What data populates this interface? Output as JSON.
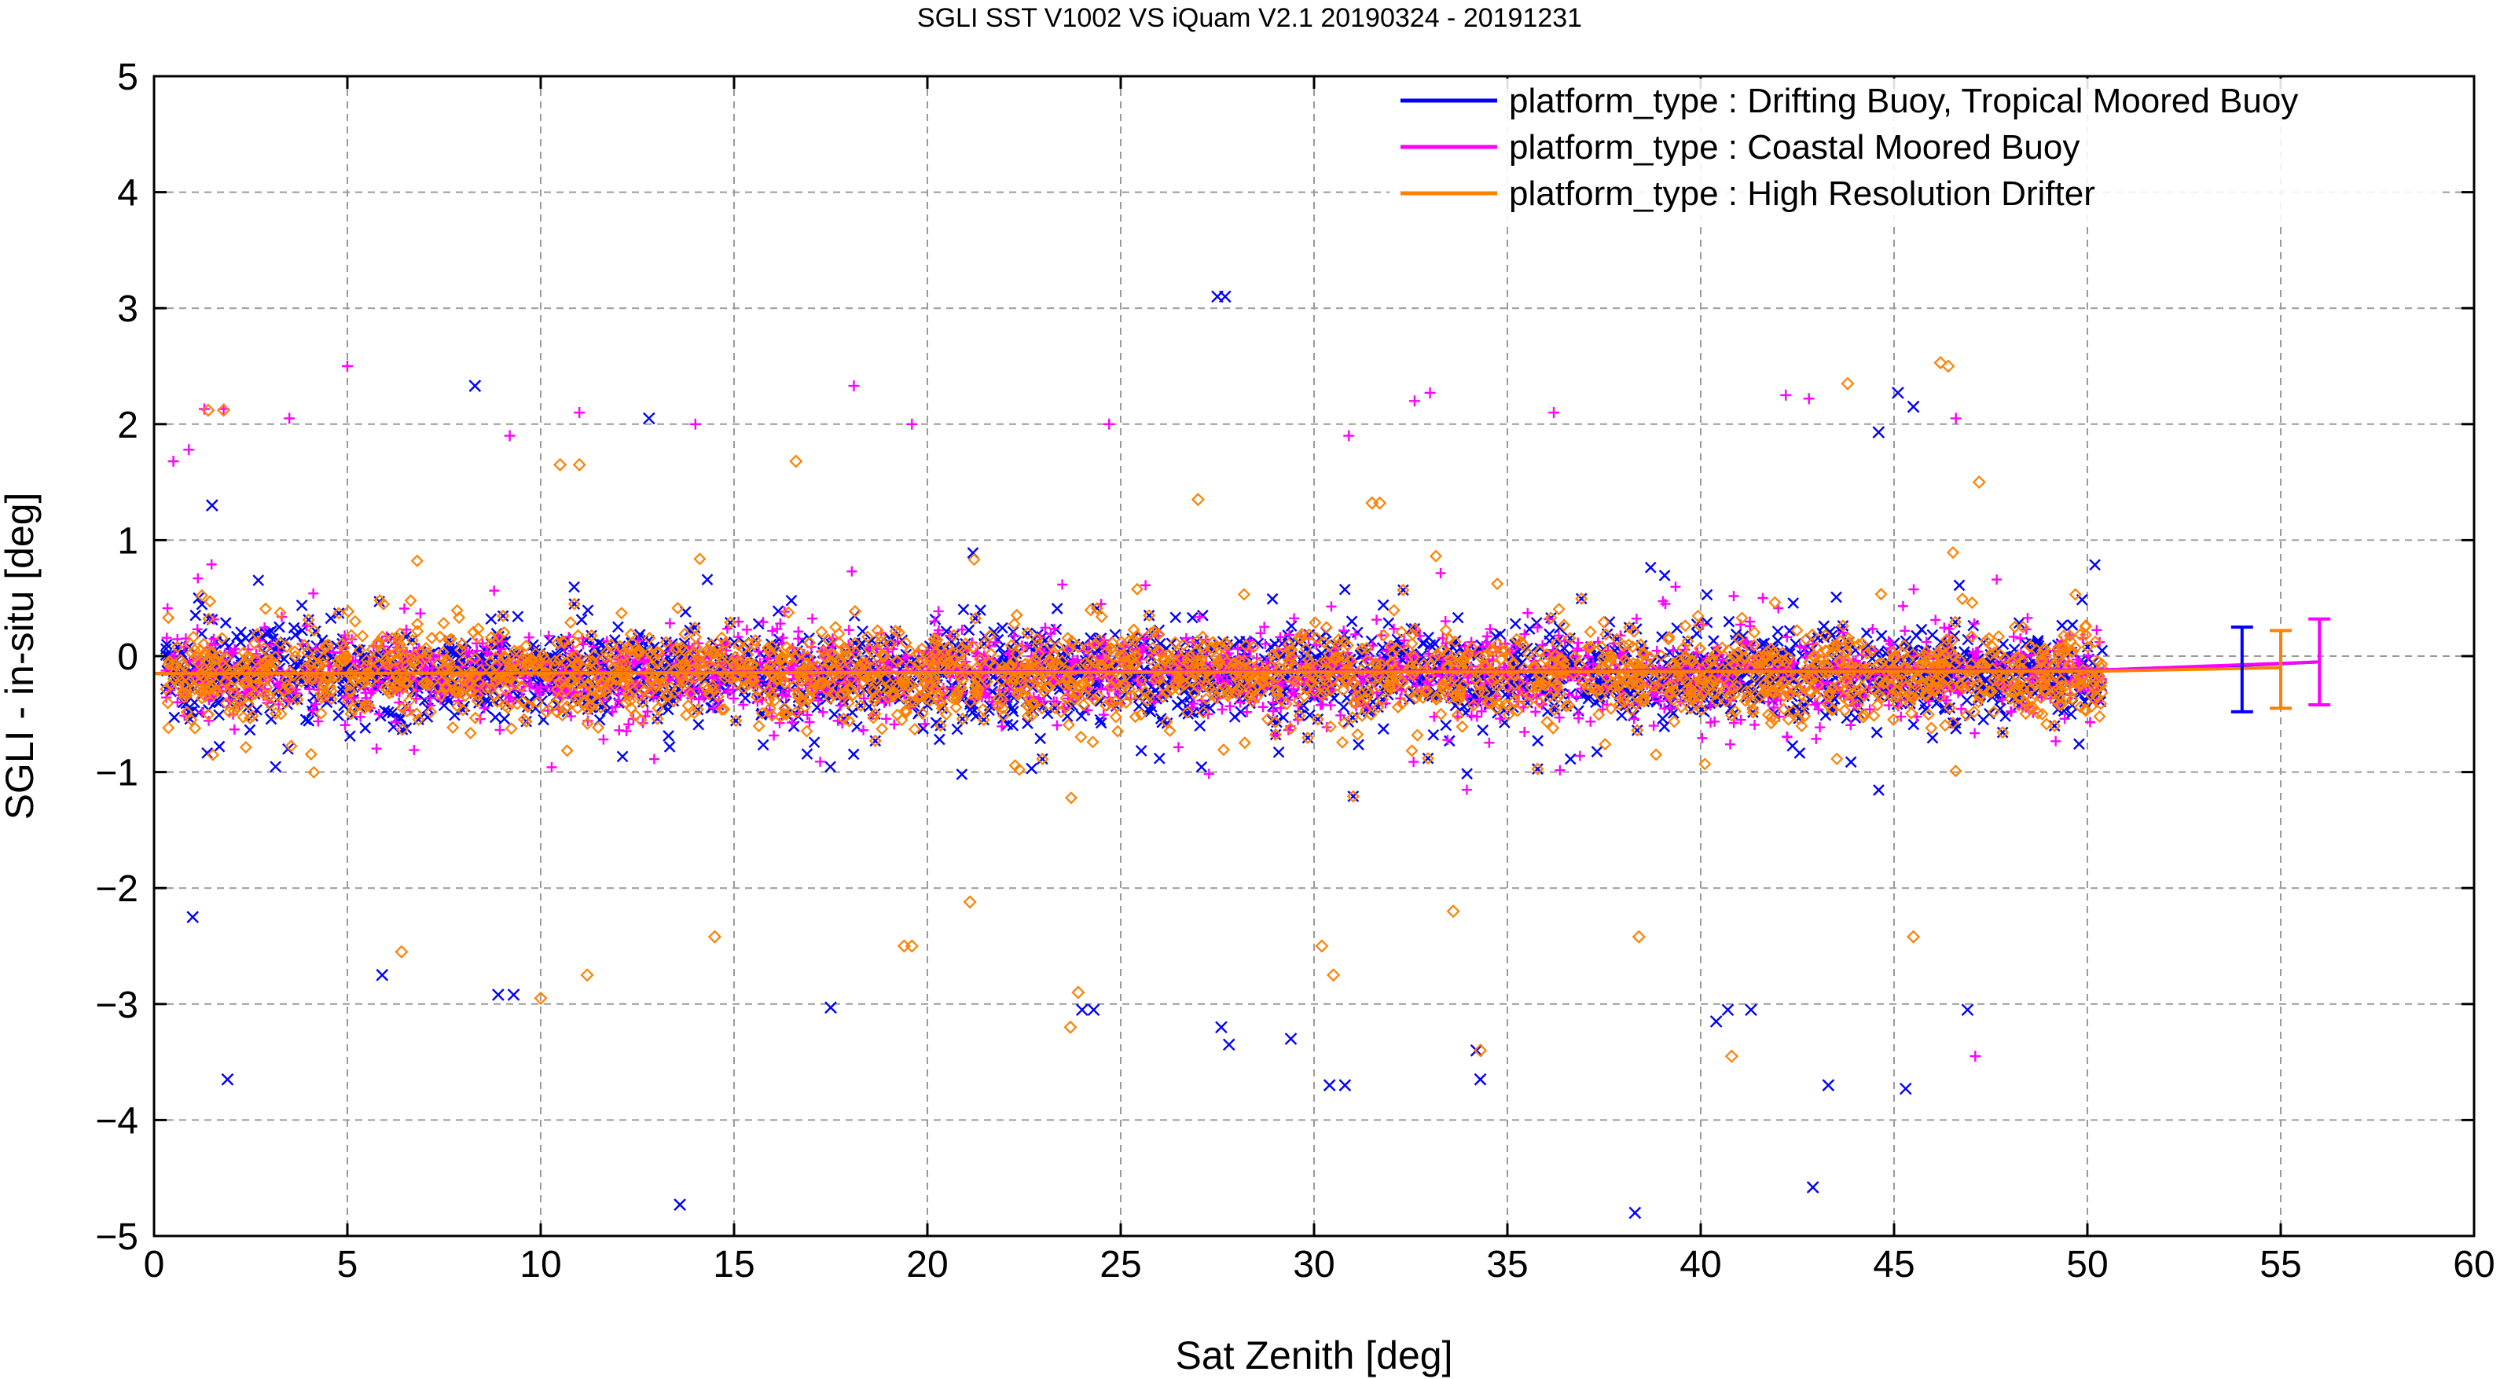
{
  "chart_data": {
    "type": "scatter",
    "title": "SGLI SST V1002 VS iQuam V2.1 20190324 - 20191231",
    "xlabel": "Sat Zenith [deg]",
    "ylabel": "SGLI - in-situ [deg]",
    "xlim": [
      0,
      60
    ],
    "ylim": [
      -5,
      5
    ],
    "x_ticks": [
      0,
      5,
      10,
      15,
      20,
      25,
      30,
      35,
      40,
      45,
      50,
      55,
      60
    ],
    "y_ticks": [
      -5,
      -4,
      -3,
      -2,
      -1,
      0,
      1,
      2,
      3,
      4,
      5
    ],
    "x_tick_labels": [
      "0",
      "5",
      "10",
      "15",
      "20",
      "25",
      "30",
      "35",
      "40",
      "45",
      "50",
      "55",
      "60"
    ],
    "y_tick_labels": [
      "−5",
      "−4",
      "−3",
      "−2",
      "−1",
      "0",
      "1",
      "2",
      "3",
      "4",
      "5"
    ],
    "grid": true,
    "legend_position": "top-right",
    "series": [
      {
        "name": "platform_type : Drifting Buoy, Tropical Moored Buoy",
        "color": "#0000ff",
        "marker": "x",
        "mean_line": {
          "x": [
            0,
            50.3,
            54,
            56
          ],
          "y": [
            -0.15,
            -0.12,
            -0.08,
            -0.05
          ]
        },
        "summary_errorbar": {
          "x": 54,
          "mean": -0.12,
          "low": -0.48,
          "high": 0.25
        },
        "outliers": [
          {
            "x": 27.5,
            "y": 3.1
          },
          {
            "x": 27.7,
            "y": 3.1
          },
          {
            "x": 8.3,
            "y": 2.33
          },
          {
            "x": 12.8,
            "y": 2.05
          },
          {
            "x": 44.6,
            "y": 1.93
          },
          {
            "x": 45.5,
            "y": 2.15
          },
          {
            "x": 45.1,
            "y": 2.27
          },
          {
            "x": 1.5,
            "y": 1.3
          },
          {
            "x": 1.9,
            "y": -3.65
          },
          {
            "x": 13.6,
            "y": -4.73
          },
          {
            "x": 30.4,
            "y": -3.7
          },
          {
            "x": 30.8,
            "y": -3.7
          },
          {
            "x": 34.2,
            "y": -3.4
          },
          {
            "x": 34.3,
            "y": -3.65
          },
          {
            "x": 38.3,
            "y": -4.8
          },
          {
            "x": 42.9,
            "y": -4.58
          },
          {
            "x": 43.3,
            "y": -3.7
          },
          {
            "x": 45.3,
            "y": -3.73
          },
          {
            "x": 27.6,
            "y": -3.2
          },
          {
            "x": 27.8,
            "y": -3.35
          },
          {
            "x": 24.0,
            "y": -3.05
          },
          {
            "x": 24.3,
            "y": -3.05
          },
          {
            "x": 17.5,
            "y": -3.03
          },
          {
            "x": 29.4,
            "y": -3.3
          },
          {
            "x": 40.7,
            "y": -3.05
          },
          {
            "x": 41.3,
            "y": -3.05
          },
          {
            "x": 40.4,
            "y": -3.15
          },
          {
            "x": 46.9,
            "y": -3.05
          },
          {
            "x": 8.9,
            "y": -2.92
          },
          {
            "x": 5.9,
            "y": -2.75
          },
          {
            "x": 9.3,
            "y": -2.92
          },
          {
            "x": 1.0,
            "y": -2.25
          }
        ]
      },
      {
        "name": "platform_type : Coastal Moored Buoy",
        "color": "#ff00ff",
        "marker": "+",
        "mean_line": {
          "x": [
            0,
            50.3,
            56
          ],
          "y": [
            -0.15,
            -0.12,
            -0.05
          ]
        },
        "summary_errorbar": {
          "x": 56,
          "mean": -0.05,
          "low": -0.42,
          "high": 0.32
        },
        "outliers": [
          {
            "x": 5.0,
            "y": 2.5
          },
          {
            "x": 18.1,
            "y": 2.33
          },
          {
            "x": 33.0,
            "y": 2.27
          },
          {
            "x": 32.6,
            "y": 2.2
          },
          {
            "x": 42.2,
            "y": 2.25
          },
          {
            "x": 42.8,
            "y": 2.22
          },
          {
            "x": 46.6,
            "y": 2.05
          },
          {
            "x": 0.5,
            "y": 1.68
          },
          {
            "x": 0.9,
            "y": 1.78
          },
          {
            "x": 11.0,
            "y": 2.1
          },
          {
            "x": 14.0,
            "y": 2.0
          },
          {
            "x": 19.6,
            "y": 2.0
          },
          {
            "x": 24.7,
            "y": 2.0
          },
          {
            "x": 36.2,
            "y": 2.1
          },
          {
            "x": 47.1,
            "y": -3.45
          },
          {
            "x": 1.3,
            "y": 2.13
          },
          {
            "x": 1.8,
            "y": 2.13
          },
          {
            "x": 3.5,
            "y": 2.05
          },
          {
            "x": 9.2,
            "y": 1.9
          },
          {
            "x": 30.9,
            "y": 1.9
          }
        ]
      },
      {
        "name": "platform_type : High Resolution Drifter",
        "color": "#ff8000",
        "marker": "diamond",
        "mean_line": {
          "x": [
            0,
            50.3,
            55
          ],
          "y": [
            -0.15,
            -0.13,
            -0.1
          ]
        },
        "summary_errorbar": {
          "x": 55,
          "mean": -0.1,
          "low": -0.45,
          "high": 0.22
        },
        "outliers": [
          {
            "x": 43.8,
            "y": 2.35
          },
          {
            "x": 46.2,
            "y": 2.53
          },
          {
            "x": 46.4,
            "y": 2.5
          },
          {
            "x": 1.4,
            "y": 2.12
          },
          {
            "x": 1.8,
            "y": 2.12
          },
          {
            "x": 10.5,
            "y": 1.65
          },
          {
            "x": 11.0,
            "y": 1.65
          },
          {
            "x": 16.6,
            "y": 1.68
          },
          {
            "x": 31.5,
            "y": 1.32
          },
          {
            "x": 31.7,
            "y": 1.32
          },
          {
            "x": 27.0,
            "y": 1.35
          },
          {
            "x": 47.2,
            "y": 1.5
          },
          {
            "x": 10.0,
            "y": -2.95
          },
          {
            "x": 11.2,
            "y": -2.75
          },
          {
            "x": 23.7,
            "y": -3.2
          },
          {
            "x": 23.9,
            "y": -2.9
          },
          {
            "x": 34.3,
            "y": -3.4
          },
          {
            "x": 40.8,
            "y": -3.45
          },
          {
            "x": 30.2,
            "y": -2.5
          },
          {
            "x": 30.5,
            "y": -2.75
          },
          {
            "x": 19.4,
            "y": -2.5
          },
          {
            "x": 19.6,
            "y": -2.5
          },
          {
            "x": 6.4,
            "y": -2.55
          },
          {
            "x": 45.5,
            "y": -2.42
          },
          {
            "x": 38.4,
            "y": -2.42
          },
          {
            "x": 33.6,
            "y": -2.2
          },
          {
            "x": 21.1,
            "y": -2.12
          },
          {
            "x": 14.5,
            "y": -2.42
          }
        ]
      }
    ],
    "core_band": {
      "x_range": [
        0.3,
        50.4
      ],
      "y_center": -0.15,
      "dense_spread": 0.45,
      "scatter_spread": 1.0
    }
  }
}
